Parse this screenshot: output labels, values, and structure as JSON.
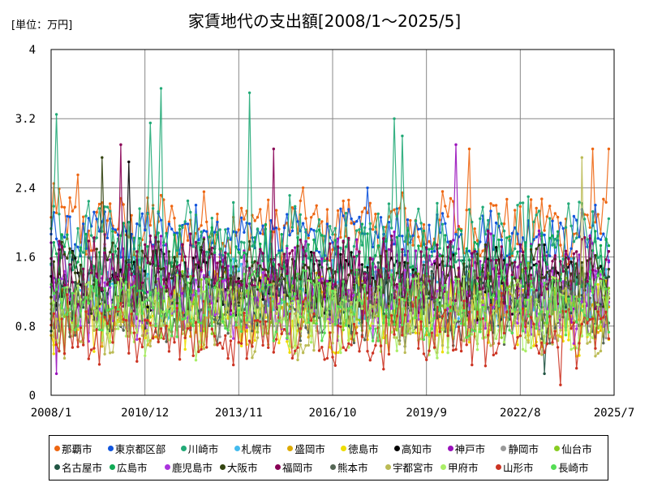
{
  "chart_data": {
    "type": "line",
    "title": "家賃地代の支出額[2008/1〜2025/5]",
    "unit_label": "[単位：万円]",
    "xlim": [
      "2008/1",
      "2025/7"
    ],
    "x_ticks": [
      "2008/1",
      "2010/12",
      "2013/11",
      "2016/10",
      "2019/9",
      "2022/8",
      "2025/7"
    ],
    "ylim": [
      0,
      4
    ],
    "y_ticks": [
      "0",
      "0.8",
      "1.6",
      "2.4",
      "3.2",
      "4"
    ],
    "grid": true,
    "legend_position": "bottom",
    "series": [
      {
        "name": "那覇市",
        "color": "#ee6611",
        "level": 1.95,
        "amp": 0.35,
        "peaks": [
          [
            2008.1,
            2.45
          ],
          [
            2008.8,
            2.55
          ],
          [
            2021.0,
            2.85
          ],
          [
            2024.8,
            2.85
          ],
          [
            2025.3,
            2.85
          ]
        ]
      },
      {
        "name": "東京都区部",
        "color": "#1155dd",
        "level": 1.85,
        "amp": 0.25,
        "peaks": [
          [
            2012.5,
            2.2
          ],
          [
            2017.8,
            2.4
          ],
          [
            2024.9,
            2.2
          ]
        ]
      },
      {
        "name": "川崎市",
        "color": "#22aa77",
        "level": 1.75,
        "amp": 0.45,
        "peaks": [
          [
            2008.2,
            3.25
          ],
          [
            2011.4,
            3.55
          ],
          [
            2011.1,
            3.15
          ],
          [
            2014.2,
            3.5
          ],
          [
            2018.7,
            3.2
          ],
          [
            2018.9,
            3.0
          ]
        ]
      },
      {
        "name": "札幌市",
        "color": "#44bbee",
        "level": 1.2,
        "amp": 0.35,
        "peaks": []
      },
      {
        "name": "盛岡市",
        "color": "#ddaa00",
        "level": 1.0,
        "amp": 0.35,
        "peaks": []
      },
      {
        "name": "徳島市",
        "color": "#eedd00",
        "level": 0.95,
        "amp": 0.4,
        "peaks": []
      },
      {
        "name": "高知市",
        "color": "#000000",
        "level": 1.3,
        "amp": 0.35,
        "peaks": [
          [
            2010.4,
            2.7
          ]
        ]
      },
      {
        "name": "神戸市",
        "color": "#9911bb",
        "level": 1.35,
        "amp": 0.45,
        "peaks": [
          [
            2020.6,
            2.9
          ],
          [
            2008.2,
            0.25
          ]
        ]
      },
      {
        "name": "静岡市",
        "color": "#999999",
        "level": 1.1,
        "amp": 0.35,
        "peaks": []
      },
      {
        "name": "仙台市",
        "color": "#88cc22",
        "level": 1.1,
        "amp": 0.35,
        "peaks": []
      },
      {
        "name": "名古屋市",
        "color": "#225544",
        "level": 1.15,
        "amp": 0.35,
        "peaks": [
          [
            2023.3,
            0.25
          ]
        ]
      },
      {
        "name": "広島市",
        "color": "#11aa55",
        "level": 1.55,
        "amp": 0.35,
        "peaks": []
      },
      {
        "name": "鹿児島市",
        "color": "#aa33dd",
        "level": 1.05,
        "amp": 0.35,
        "peaks": []
      },
      {
        "name": "大阪市",
        "color": "#334411",
        "level": 1.35,
        "amp": 0.35,
        "peaks": [
          [
            2009.6,
            2.75
          ]
        ]
      },
      {
        "name": "福岡市",
        "color": "#880055",
        "level": 1.4,
        "amp": 0.4,
        "peaks": [
          [
            2010.2,
            2.9
          ],
          [
            2014.9,
            2.85
          ]
        ]
      },
      {
        "name": "熊本市",
        "color": "#556655",
        "level": 1.0,
        "amp": 0.35,
        "peaks": []
      },
      {
        "name": "宇都宮市",
        "color": "#bbbb55",
        "level": 0.85,
        "amp": 0.35,
        "peaks": [
          [
            2024.5,
            2.75
          ]
        ]
      },
      {
        "name": "甲府市",
        "color": "#aaee66",
        "level": 0.9,
        "amp": 0.4,
        "peaks": []
      },
      {
        "name": "山形市",
        "color": "#cc3322",
        "level": 0.75,
        "amp": 0.35,
        "peaks": [
          [
            2023.8,
            0.12
          ]
        ]
      },
      {
        "name": "長崎市",
        "color": "#55dd55",
        "level": 1.05,
        "amp": 0.35,
        "peaks": []
      }
    ]
  }
}
